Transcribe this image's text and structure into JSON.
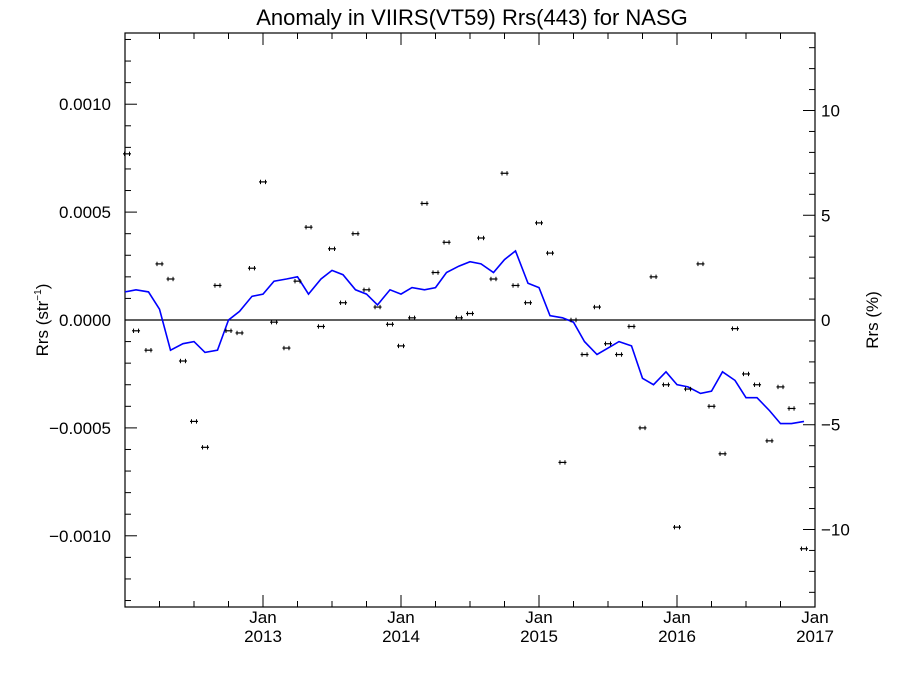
{
  "chart_data": {
    "type": "scatter",
    "title": "Anomaly in VIIRS(VT59) Rrs(443) for NASG",
    "ylabel_prefix": "Rrs (str",
    "ylabel_sup": "−1",
    "ylabel_suffix": ")",
    "y2label": "Rrs (%)",
    "xlim": [
      2012.0,
      2017.0
    ],
    "ylim": [
      -0.00133,
      0.00133
    ],
    "y2lim": [
      -13.7,
      13.7
    ],
    "x_ticks": [
      {
        "value": 2013,
        "month": "Jan",
        "year": "2013"
      },
      {
        "value": 2014,
        "month": "Jan",
        "year": "2014"
      },
      {
        "value": 2015,
        "month": "Jan",
        "year": "2015"
      },
      {
        "value": 2016,
        "month": "Jan",
        "year": "2016"
      },
      {
        "value": 2017,
        "month": "Jan",
        "year": "2017"
      }
    ],
    "y_ticks": [
      {
        "value": 0.001,
        "label": "0.0010"
      },
      {
        "value": 0.0005,
        "label": "0.0005"
      },
      {
        "value": 0.0,
        "label": "0.0000"
      },
      {
        "value": -0.0005,
        "label": "−0.0005"
      },
      {
        "value": -0.001,
        "label": "−0.0010"
      }
    ],
    "y2_ticks": [
      {
        "value": 10,
        "label": "10"
      },
      {
        "value": 5,
        "label": "5"
      },
      {
        "value": 0,
        "label": "0"
      },
      {
        "value": -5,
        "label": "−5"
      },
      {
        "value": -10,
        "label": "−10"
      }
    ],
    "zero_line": true,
    "series": [
      {
        "kind": "points_with_error_bars",
        "color": "#000000",
        "points": [
          {
            "x": 2012.0,
            "y": 0.00077
          },
          {
            "x": 2012.08,
            "y": -5e-05
          },
          {
            "x": 2012.17,
            "y": -0.00014
          },
          {
            "x": 2012.25,
            "y": 0.00026
          },
          {
            "x": 2012.33,
            "y": 0.00019
          },
          {
            "x": 2012.42,
            "y": -0.00019
          },
          {
            "x": 2012.5,
            "y": -0.00047
          },
          {
            "x": 2012.58,
            "y": -0.00059
          },
          {
            "x": 2012.67,
            "y": 0.00016
          },
          {
            "x": 2012.75,
            "y": -5e-05
          },
          {
            "x": 2012.83,
            "y": -6e-05
          },
          {
            "x": 2012.92,
            "y": 0.00024
          },
          {
            "x": 2013.0,
            "y": 0.00064
          },
          {
            "x": 2013.08,
            "y": -1e-05
          },
          {
            "x": 2013.17,
            "y": -0.00013
          },
          {
            "x": 2013.25,
            "y": 0.00018
          },
          {
            "x": 2013.33,
            "y": 0.00043
          },
          {
            "x": 2013.42,
            "y": -3e-05
          },
          {
            "x": 2013.5,
            "y": 0.00033
          },
          {
            "x": 2013.58,
            "y": 8e-05
          },
          {
            "x": 2013.67,
            "y": 0.0004
          },
          {
            "x": 2013.75,
            "y": 0.00014
          },
          {
            "x": 2013.83,
            "y": 6e-05
          },
          {
            "x": 2013.92,
            "y": -2e-05
          },
          {
            "x": 2014.0,
            "y": -0.00012
          },
          {
            "x": 2014.08,
            "y": 1e-05
          },
          {
            "x": 2014.17,
            "y": 0.00054
          },
          {
            "x": 2014.25,
            "y": 0.00022
          },
          {
            "x": 2014.33,
            "y": 0.00036
          },
          {
            "x": 2014.42,
            "y": 1e-05
          },
          {
            "x": 2014.5,
            "y": 3e-05
          },
          {
            "x": 2014.58,
            "y": 0.00038
          },
          {
            "x": 2014.67,
            "y": 0.00019
          },
          {
            "x": 2014.75,
            "y": 0.00068
          },
          {
            "x": 2014.83,
            "y": 0.00016
          },
          {
            "x": 2014.92,
            "y": 8e-05
          },
          {
            "x": 2015.0,
            "y": 0.00045
          },
          {
            "x": 2015.08,
            "y": 0.00031
          },
          {
            "x": 2015.17,
            "y": -0.00066
          },
          {
            "x": 2015.25,
            "y": 0.0
          },
          {
            "x": 2015.33,
            "y": -0.00016
          },
          {
            "x": 2015.42,
            "y": 6e-05
          },
          {
            "x": 2015.5,
            "y": -0.00011
          },
          {
            "x": 2015.58,
            "y": -0.00016
          },
          {
            "x": 2015.67,
            "y": -3e-05
          },
          {
            "x": 2015.75,
            "y": -0.0005
          },
          {
            "x": 2015.83,
            "y": 0.0002
          },
          {
            "x": 2015.92,
            "y": -0.0003
          },
          {
            "x": 2016.0,
            "y": -0.00096
          },
          {
            "x": 2016.08,
            "y": -0.00032
          },
          {
            "x": 2016.17,
            "y": 0.00026
          },
          {
            "x": 2016.25,
            "y": -0.0004
          },
          {
            "x": 2016.33,
            "y": -0.00062
          },
          {
            "x": 2016.42,
            "y": -4e-05
          },
          {
            "x": 2016.5,
            "y": -0.00025
          },
          {
            "x": 2016.58,
            "y": -0.0003
          },
          {
            "x": 2016.67,
            "y": -0.00056
          },
          {
            "x": 2016.75,
            "y": -0.00031
          },
          {
            "x": 2016.83,
            "y": -0.00041
          },
          {
            "x": 2016.92,
            "y": -0.00106
          }
        ],
        "error": 7e-06
      },
      {
        "kind": "line",
        "color": "#0000ff",
        "points": [
          [
            2012.0,
            0.00013
          ],
          [
            2012.08,
            0.00014
          ],
          [
            2012.17,
            0.00013
          ],
          [
            2012.25,
            5e-05
          ],
          [
            2012.33,
            -0.00014
          ],
          [
            2012.42,
            -0.00011
          ],
          [
            2012.5,
            -0.0001
          ],
          [
            2012.58,
            -0.00015
          ],
          [
            2012.67,
            -0.00014
          ],
          [
            2012.75,
            0.0
          ],
          [
            2012.83,
            4e-05
          ],
          [
            2012.92,
            0.00011
          ],
          [
            2013.0,
            0.00012
          ],
          [
            2013.08,
            0.00018
          ],
          [
            2013.17,
            0.00019
          ],
          [
            2013.25,
            0.0002
          ],
          [
            2013.33,
            0.00012
          ],
          [
            2013.42,
            0.00019
          ],
          [
            2013.5,
            0.00023
          ],
          [
            2013.58,
            0.00021
          ],
          [
            2013.67,
            0.00014
          ],
          [
            2013.75,
            0.00012
          ],
          [
            2013.83,
            7e-05
          ],
          [
            2013.92,
            0.00014
          ],
          [
            2014.0,
            0.00012
          ],
          [
            2014.08,
            0.00015
          ],
          [
            2014.17,
            0.00014
          ],
          [
            2014.25,
            0.00015
          ],
          [
            2014.33,
            0.00022
          ],
          [
            2014.42,
            0.00025
          ],
          [
            2014.5,
            0.00027
          ],
          [
            2014.58,
            0.00026
          ],
          [
            2014.67,
            0.00022
          ],
          [
            2014.75,
            0.00028
          ],
          [
            2014.83,
            0.00032
          ],
          [
            2014.92,
            0.00017
          ],
          [
            2015.0,
            0.00015
          ],
          [
            2015.08,
            2e-05
          ],
          [
            2015.17,
            1e-05
          ],
          [
            2015.25,
            -1e-05
          ],
          [
            2015.33,
            -0.0001
          ],
          [
            2015.42,
            -0.00016
          ],
          [
            2015.5,
            -0.00013
          ],
          [
            2015.58,
            -0.0001
          ],
          [
            2015.67,
            -0.00012
          ],
          [
            2015.75,
            -0.00027
          ],
          [
            2015.83,
            -0.0003
          ],
          [
            2015.92,
            -0.00024
          ],
          [
            2016.0,
            -0.0003
          ],
          [
            2016.08,
            -0.00031
          ],
          [
            2016.17,
            -0.00034
          ],
          [
            2016.25,
            -0.00033
          ],
          [
            2016.33,
            -0.00024
          ],
          [
            2016.42,
            -0.00028
          ],
          [
            2016.5,
            -0.00036
          ],
          [
            2016.58,
            -0.00036
          ],
          [
            2016.67,
            -0.00042
          ],
          [
            2016.75,
            -0.00048
          ],
          [
            2016.83,
            -0.00048
          ],
          [
            2016.92,
            -0.00047
          ]
        ]
      }
    ]
  }
}
